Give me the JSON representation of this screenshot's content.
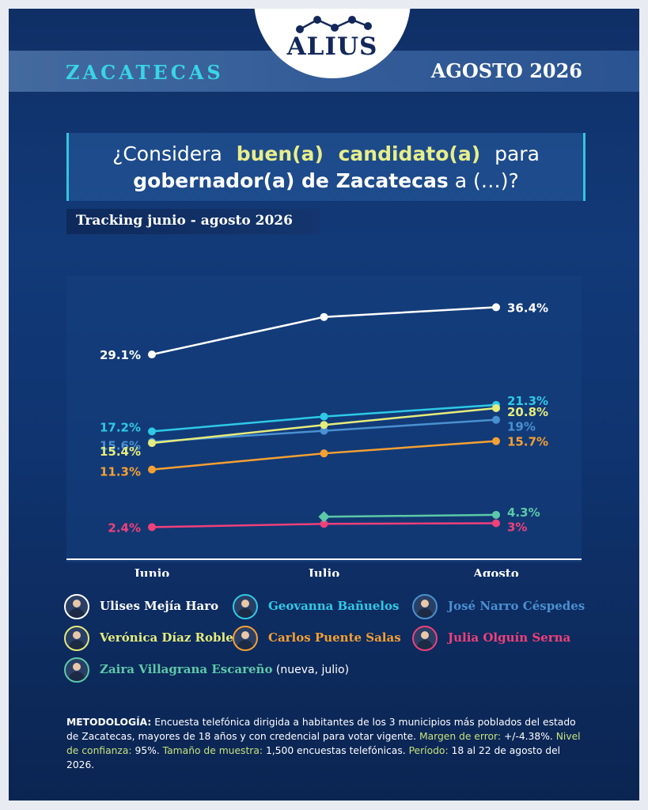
{
  "header": {
    "brand": "ALIUS",
    "state": "ZACATECAS",
    "period": "AGOSTO 2026"
  },
  "question": {
    "part1": "¿Considera",
    "highlight": "buen(a) candidato(a)",
    "part2": "para",
    "line2_bold": "gobernador(a) de Zacatecas",
    "line2_rest": "a (…)?"
  },
  "subtitle": "Tracking junio - agosto 2026",
  "colors": {
    "white": "#ffffff",
    "cyan": "#2ec9e6",
    "blue": "#4a90d0",
    "yellow": "#e6ec7c",
    "orange": "#f5a033",
    "pink": "#f0407a",
    "teal": "#5cc9a8"
  },
  "chart_data": {
    "type": "line",
    "categories": [
      "Junio",
      "Julio",
      "Agosto"
    ],
    "ylim": [
      0,
      40
    ],
    "grid": false,
    "series": [
      {
        "name": "Ulises Mejía Haro",
        "color": "#ffffff",
        "values": [
          29.1,
          34.9,
          36.4
        ],
        "labels": [
          "29.1%",
          null,
          "36.4%"
        ]
      },
      {
        "name": "Geovanna Bañuelos",
        "color": "#2ec9e6",
        "values": [
          17.2,
          19.5,
          21.3
        ],
        "labels": [
          "17.2%",
          null,
          "21.3%"
        ]
      },
      {
        "name": "José Narro Céspedes",
        "color": "#4a90d0",
        "values": [
          15.6,
          17.3,
          19.0
        ],
        "labels": [
          "15.6%",
          null,
          "19%"
        ]
      },
      {
        "name": "Verónica Díaz Robles",
        "color": "#e6ec7c",
        "values": [
          15.4,
          18.2,
          20.8
        ],
        "labels": [
          "15.4%",
          null,
          "20.8%"
        ]
      },
      {
        "name": "Carlos Puente Salas",
        "color": "#f5a033",
        "values": [
          11.3,
          13.8,
          15.7
        ],
        "labels": [
          "11.3%",
          null,
          "15.7%"
        ]
      },
      {
        "name": "Julia Olguín Serna",
        "color": "#f0407a",
        "values": [
          2.4,
          2.9,
          3.0
        ],
        "labels": [
          "2.4%",
          null,
          "3%"
        ]
      },
      {
        "name": "Zaira Villagrana Escareño",
        "color": "#5cc9a8",
        "values": [
          null,
          4.0,
          4.3
        ],
        "labels": [
          null,
          null,
          "4.3%"
        ]
      }
    ]
  },
  "legend": [
    {
      "name": "Ulises Mejía Haro",
      "color": "#ffffff",
      "extra": ""
    },
    {
      "name": "Geovanna Bañuelos",
      "color": "#2ec9e6",
      "extra": ""
    },
    {
      "name": "José Narro Céspedes",
      "color": "#4a90d0",
      "extra": ""
    },
    {
      "name": "Verónica Díaz Robles",
      "color": "#e6ec7c",
      "extra": ""
    },
    {
      "name": "Carlos Puente Salas",
      "color": "#f5a033",
      "extra": ""
    },
    {
      "name": "Julia Olguín Serna",
      "color": "#f0407a",
      "extra": ""
    },
    {
      "name": "Zaira Villagrana Escareño",
      "color": "#5cc9a8",
      "extra": "(nueva, julio)"
    }
  ],
  "methodology": {
    "k1": "METODOLOGÍA:",
    "t1": "Encuesta telefónica dirigida a habitantes de los 3 municipios más poblados del estado de Zacatecas, mayores de 18 años y con credencial para votar vigente.",
    "k2": "Margen de error:",
    "t2": "+/-4.38%.",
    "k3": "Nivel de confianza:",
    "t3": "95%.",
    "k4": "Tamaño de muestra:",
    "t4": "1,500 encuestas telefónicas.",
    "k5": "Período:",
    "t5": "18 al 22 de agosto del 2026."
  }
}
